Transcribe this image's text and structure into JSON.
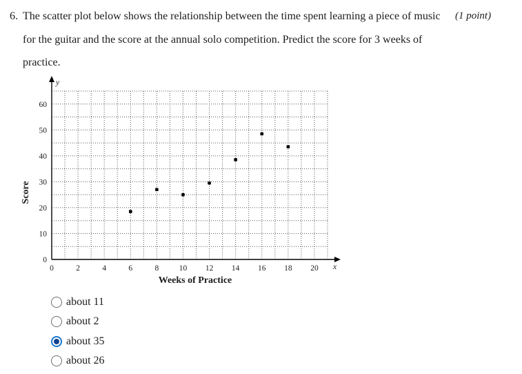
{
  "question": {
    "number": "6.",
    "lines": [
      "The scatter plot below shows the relationship between the time spent learning a piece of music",
      "for the guitar and the score at the annual solo competition. Predict the score for 3 weeks of",
      "practice."
    ],
    "points_label": "(1 point)"
  },
  "chart_data": {
    "type": "scatter",
    "title": "",
    "xlabel": "Weeks of Practice",
    "ylabel": "Score",
    "x_axis_letter": "x",
    "y_axis_letter": "y",
    "xlim": [
      0,
      21
    ],
    "ylim": [
      0,
      65
    ],
    "x_ticks": [
      0,
      2,
      4,
      6,
      8,
      10,
      12,
      14,
      16,
      18,
      20
    ],
    "y_ticks": [
      0,
      10,
      20,
      30,
      40,
      50,
      60
    ],
    "x_grid_step": 1,
    "y_grid_step": 5,
    "grid_style": "dotted",
    "legend": "none",
    "points": [
      [
        6,
        18.5
      ],
      [
        8,
        27.0
      ],
      [
        10,
        25.0
      ],
      [
        12,
        29.5
      ],
      [
        14,
        38.5
      ],
      [
        16,
        48.5
      ],
      [
        18,
        43.5
      ]
    ]
  },
  "options": [
    {
      "label": "about 11",
      "selected": false
    },
    {
      "label": "about 2",
      "selected": false
    },
    {
      "label": "about 35",
      "selected": true
    },
    {
      "label": "about 26",
      "selected": false
    }
  ],
  "colors": {
    "background": "#ffffff",
    "text": "#1c1c1c",
    "axis": "#000000",
    "grid": "#555555",
    "point": "#000000",
    "radio_border": "#6e6e6e",
    "radio_selected_ring": "#1976d2",
    "radio_selected_dot": "#14418f"
  }
}
